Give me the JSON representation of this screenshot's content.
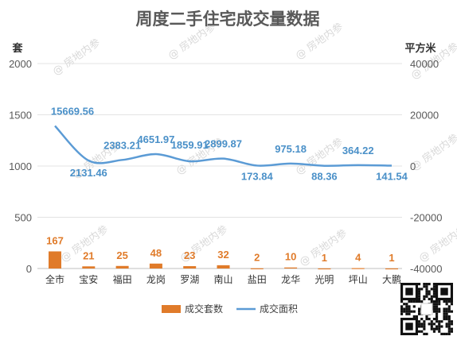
{
  "chart_data": {
    "type": "bar",
    "title": "周度二手住宅成交量数据",
    "ylabel_left": "套",
    "ylabel_right": "平方米",
    "categories": [
      "全市",
      "宝安",
      "福田",
      "龙岗",
      "罗湖",
      "南山",
      "盐田",
      "龙华",
      "光明",
      "坪山",
      "大鹏"
    ],
    "y_left": {
      "min": 0,
      "max": 2000,
      "ticks": [
        0,
        500,
        1000,
        1500,
        2000
      ]
    },
    "y_right": {
      "min": -40000,
      "max": 40000,
      "ticks": [
        -40000,
        -20000,
        0,
        20000,
        40000
      ]
    },
    "grid": true,
    "legend_position": "bottom",
    "series": [
      {
        "name": "成交套数",
        "type": "bar",
        "axis": "left",
        "color": "#e07b2a",
        "values": [
          167,
          21,
          25,
          48,
          23,
          32,
          2,
          10,
          1,
          4,
          1
        ]
      },
      {
        "name": "成交面积",
        "type": "line",
        "axis": "right",
        "color": "#5b9bd5",
        "values": [
          15669.56,
          2131.46,
          2383.21,
          4651.97,
          1859.91,
          2899.87,
          173.84,
          975.18,
          88.36,
          364.22,
          141.54
        ]
      }
    ],
    "watermark": "房地内参"
  }
}
